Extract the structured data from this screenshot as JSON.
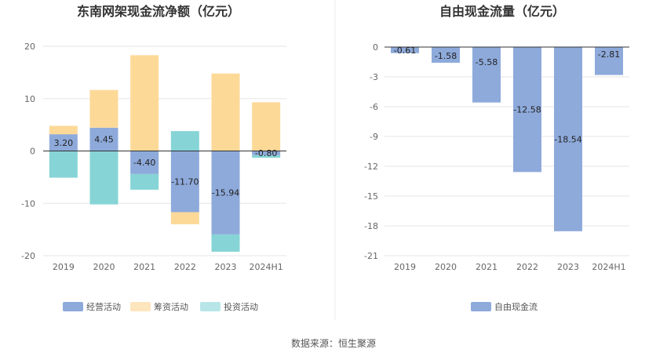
{
  "source": "数据来源：恒生聚源",
  "colors": {
    "operating": "#8eaadb",
    "financing": "#fdd998",
    "investing": "#86d4d6",
    "free_cf": "#8eaadb",
    "investing_legend": "#b8e6e8",
    "financing_legend": "#fde5bd",
    "grid": "#e6e6e6",
    "axis": "#333333"
  },
  "chart_data": [
    {
      "type": "bar",
      "stacked": true,
      "title": "东南网架现金流净额（亿元）",
      "categories": [
        "2019",
        "2020",
        "2021",
        "2022",
        "2023",
        "2024H1"
      ],
      "ylim": [
        -20,
        20
      ],
      "yticks": [
        20,
        10,
        0,
        -10,
        -20
      ],
      "legend_position": "bottom",
      "series": [
        {
          "name": "经营活动",
          "key": "operating",
          "values": [
            3.2,
            4.45,
            -4.4,
            -11.7,
            -15.94,
            -0.8
          ],
          "labels": [
            "3.20",
            "4.45",
            "-4.40",
            "-11.70",
            "-15.94",
            "-0.80"
          ]
        },
        {
          "name": "筹资活动",
          "key": "financing",
          "values": [
            1.6,
            7.2,
            18.3,
            -2.3,
            14.8,
            9.3
          ]
        },
        {
          "name": "投资活动",
          "key": "investing",
          "values": [
            -5.1,
            -10.2,
            -3.0,
            3.8,
            -3.3,
            -0.5
          ]
        }
      ]
    },
    {
      "type": "bar",
      "title": "自由现金流量（亿元）",
      "categories": [
        "2019",
        "2020",
        "2021",
        "2022",
        "2023",
        "2024H1"
      ],
      "ylim": [
        -21,
        0
      ],
      "yticks": [
        0,
        -3,
        -6,
        -9,
        -12,
        -15,
        -18,
        -21
      ],
      "legend_position": "bottom",
      "series": [
        {
          "name": "自由现金流",
          "key": "free_cf",
          "values": [
            -0.61,
            -1.58,
            -5.58,
            -12.58,
            -18.54,
            -2.81
          ],
          "labels": [
            "-0.61",
            "-1.58",
            "-5.58",
            "-12.58",
            "-18.54",
            "-2.81"
          ]
        }
      ]
    }
  ]
}
